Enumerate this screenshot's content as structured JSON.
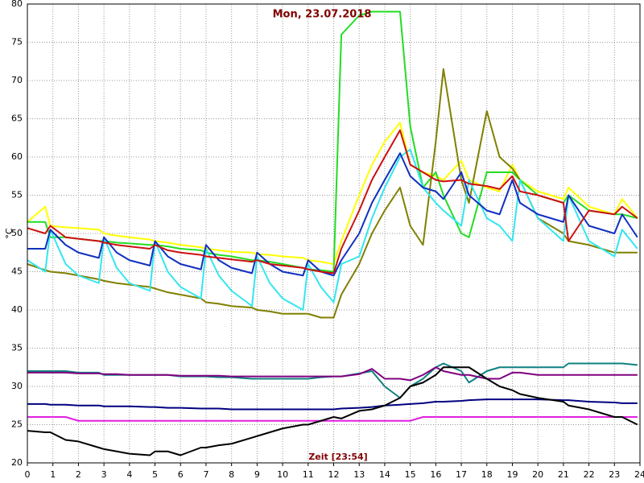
{
  "chart_data": {
    "type": "line",
    "title": "Mon, 23.07.2018",
    "y_label": "°C",
    "x_label": "Zeit [23:54]",
    "x": [
      0,
      0.7,
      0.9,
      1.5,
      2,
      2.8,
      3,
      3.5,
      4,
      4.8,
      5,
      5.5,
      6,
      6.8,
      7,
      7.5,
      8,
      8.8,
      9,
      9.5,
      10,
      10.8,
      11,
      11.5,
      12,
      12.3,
      13,
      13.5,
      14,
      14.6,
      15,
      15.5,
      16,
      16.3,
      17,
      17.3,
      18,
      18.5,
      19,
      19.3,
      20,
      21,
      21.2,
      22,
      23,
      23.3,
      23.9
    ],
    "xlim": [
      0,
      24
    ],
    "xticks": [
      0,
      1,
      2,
      3,
      4,
      5,
      6,
      7,
      8,
      9,
      10,
      11,
      12,
      13,
      14,
      15,
      16,
      17,
      18,
      19,
      20,
      21,
      22,
      23,
      24
    ],
    "ylim": [
      20,
      80
    ],
    "yticks": [
      20,
      25,
      30,
      35,
      40,
      45,
      50,
      55,
      60,
      65,
      70,
      75,
      80
    ],
    "grid": true,
    "series": [
      {
        "color": "#ffff00",
        "values": [
          51.5,
          53.5,
          51,
          50.8,
          50.7,
          50.5,
          50,
          49.7,
          49.5,
          49.2,
          49,
          48.8,
          48.5,
          48.2,
          48,
          47.8,
          47.6,
          47.5,
          47.3,
          47.2,
          47,
          46.8,
          46.5,
          46.3,
          46,
          49,
          55,
          59,
          62,
          64.5,
          59,
          58,
          57.5,
          57,
          59.5,
          57,
          56,
          55.5,
          59,
          57,
          55.5,
          54.5,
          56,
          53.5,
          52.5,
          54.5,
          52
        ]
      },
      {
        "color": "#22dd22",
        "values": [
          51.5,
          51.5,
          49.5,
          49.5,
          49.3,
          49,
          49,
          48.8,
          48.7,
          48.5,
          48.5,
          48.3,
          48,
          47.8,
          47.5,
          47.2,
          47,
          46.5,
          46.5,
          46.3,
          46,
          45.5,
          45.3,
          45.2,
          45,
          76,
          78.5,
          79,
          79,
          79,
          64,
          56,
          58,
          55,
          50,
          49.5,
          58,
          58,
          58,
          57,
          55,
          54,
          55,
          53,
          52.5,
          52.5,
          52
        ]
      },
      {
        "color": "#808000",
        "values": [
          46,
          45.2,
          45,
          44.8,
          44.5,
          44,
          43.8,
          43.5,
          43.3,
          43,
          42.8,
          42.3,
          42,
          41.5,
          41,
          40.8,
          40.5,
          40.3,
          40,
          39.8,
          39.5,
          39.5,
          39.5,
          39,
          39,
          42,
          46,
          50,
          53,
          56,
          51,
          48.5,
          62,
          71.5,
          57,
          54,
          66,
          60,
          58.5,
          57,
          52,
          50,
          49,
          48.5,
          47.5,
          47.5,
          47.5
        ]
      },
      {
        "color": "#33e6f0",
        "values": [
          46.5,
          45,
          50.5,
          46,
          44.5,
          43.5,
          49.5,
          45.5,
          43.5,
          42.5,
          49,
          45,
          43,
          41.5,
          48,
          44.5,
          42.5,
          40.5,
          47,
          43.5,
          41.5,
          40,
          46,
          43,
          41,
          46,
          47,
          52,
          56,
          60,
          61,
          56,
          54,
          53,
          51,
          57,
          52,
          51,
          49,
          57,
          52,
          49,
          55,
          49,
          47,
          50.5,
          48
        ]
      },
      {
        "color": "#1030c0",
        "values": [
          48,
          48,
          50.5,
          48.5,
          47.5,
          46.8,
          49.5,
          47.5,
          46.5,
          45.8,
          49,
          47,
          46,
          45.3,
          48.5,
          46.5,
          45.5,
          44.8,
          47.5,
          46,
          45,
          44.5,
          46.5,
          45,
          44.5,
          46.5,
          50,
          54,
          57,
          60.5,
          57.5,
          56,
          55.5,
          54.5,
          58,
          55,
          53,
          52.5,
          57,
          54,
          52.5,
          51.5,
          55,
          51,
          50,
          52.5,
          49.5
        ]
      },
      {
        "color": "#cc1010",
        "values": [
          50.7,
          50,
          51,
          49.5,
          49.3,
          49,
          48.8,
          48.5,
          48.3,
          48,
          48.5,
          47.8,
          47.5,
          47.2,
          47,
          46.8,
          46.6,
          46.3,
          46.5,
          46,
          45.8,
          45.5,
          45.3,
          45,
          44.8,
          48,
          53,
          57,
          60,
          63.5,
          59,
          58,
          57,
          56.8,
          57,
          56.5,
          56.2,
          55.8,
          57.5,
          55.5,
          55,
          54,
          49,
          53,
          52.5,
          53.5,
          52
        ]
      },
      {
        "color": "#108080",
        "values": [
          32,
          32,
          32,
          32,
          31.8,
          31.8,
          31.5,
          31.5,
          31.5,
          31.5,
          31.5,
          31.5,
          31.3,
          31.3,
          31.3,
          31.2,
          31.2,
          31,
          31,
          31,
          31,
          31,
          31,
          31.2,
          31.3,
          31.3,
          31.7,
          32,
          30,
          28.5,
          30,
          31,
          32.5,
          33,
          32,
          30.5,
          32,
          32.5,
          32.5,
          32.5,
          32.5,
          32.5,
          33,
          33,
          33,
          33,
          32.8
        ]
      },
      {
        "color": "#800080",
        "values": [
          31.8,
          31.8,
          31.8,
          31.8,
          31.7,
          31.7,
          31.6,
          31.6,
          31.5,
          31.5,
          31.5,
          31.5,
          31.4,
          31.4,
          31.4,
          31.4,
          31.3,
          31.3,
          31.3,
          31.3,
          31.3,
          31.3,
          31.3,
          31.3,
          31.3,
          31.3,
          31.6,
          32.3,
          31,
          31,
          30.8,
          31.5,
          32.5,
          32,
          31.5,
          31.5,
          31,
          31,
          31.8,
          31.8,
          31.5,
          31.5,
          31.5,
          31.5,
          31.5,
          31.5,
          31.5
        ]
      },
      {
        "color": "#000080",
        "values": [
          27.7,
          27.7,
          27.6,
          27.6,
          27.5,
          27.5,
          27.4,
          27.4,
          27.4,
          27.3,
          27.3,
          27.2,
          27.2,
          27.1,
          27.1,
          27.1,
          27,
          27,
          27,
          27,
          27,
          27,
          27,
          27,
          27,
          27.1,
          27.2,
          27.3,
          27.5,
          27.6,
          27.7,
          27.8,
          28,
          28,
          28.1,
          28.2,
          28.3,
          28.3,
          28.3,
          28.3,
          28.3,
          28.2,
          28.2,
          28,
          27.9,
          27.8,
          27.8
        ]
      },
      {
        "color": "#e020e0",
        "values": [
          26,
          26,
          26,
          26,
          25.5,
          25.5,
          25.5,
          25.5,
          25.5,
          25.5,
          25.5,
          25.5,
          25.5,
          25.5,
          25.5,
          25.5,
          25.5,
          25.5,
          25.5,
          25.5,
          25.5,
          25.5,
          25.5,
          25.5,
          25.5,
          25.5,
          25.5,
          25.5,
          25.5,
          25.5,
          25.5,
          26,
          26,
          26,
          26,
          26,
          26,
          26,
          26,
          26,
          26,
          26,
          26,
          26,
          26,
          26,
          26
        ]
      },
      {
        "color": "#000000",
        "values": [
          24.2,
          24,
          24,
          23,
          22.8,
          22,
          21.8,
          21.5,
          21.2,
          21,
          21.5,
          21.5,
          21,
          22,
          22,
          22.3,
          22.5,
          23.3,
          23.5,
          24,
          24.5,
          25,
          25,
          25.5,
          26,
          25.8,
          26.8,
          27,
          27.5,
          28.5,
          30,
          30.5,
          31.5,
          32.5,
          32.5,
          32.5,
          31,
          30,
          29.5,
          29,
          28.5,
          28,
          27.5,
          27,
          26,
          26,
          25
        ]
      }
    ]
  }
}
